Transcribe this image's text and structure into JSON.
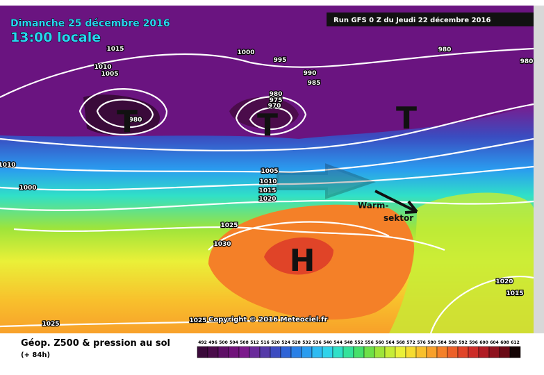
{
  "header": {
    "date": "Dimanche 25 décembre 2016",
    "time": "13:00 locale",
    "run": "Run GFS 0 Z du Jeudi 22 décembre 2016"
  },
  "map": {
    "pressure_centers": [
      "T",
      "T",
      "T",
      "H"
    ],
    "annotation": [
      "Warm-",
      "sektor"
    ],
    "copyright": "Copyright © 2016 Meteociel.fr",
    "isobar_labels": [
      1015,
      1010,
      1005,
      980,
      1000,
      995,
      990,
      985,
      980,
      975,
      970,
      980,
      980,
      1010,
      1000,
      1005,
      1010,
      1015,
      1020,
      1025,
      1030,
      1025,
      1025,
      1020,
      1015
    ]
  },
  "footer": {
    "title": "Géop. Z500 & pression au sol",
    "lead": "(+ 84h)"
  },
  "colorbar": {
    "labels": [
      492,
      496,
      500,
      504,
      508,
      512,
      516,
      520,
      524,
      528,
      532,
      536,
      540,
      544,
      548,
      552,
      556,
      560,
      564,
      568,
      572,
      576,
      580,
      584,
      588,
      592,
      596,
      600,
      604,
      608,
      612
    ],
    "colors": [
      "#3a0a3a",
      "#4b0c4b",
      "#5e0f66",
      "#70127a",
      "#7c1a8c",
      "#6a2a9a",
      "#553aa8",
      "#3c4cc0",
      "#2f64d6",
      "#2a80e6",
      "#2a9cef",
      "#2ebbf2",
      "#2fd3ea",
      "#30e0c8",
      "#34e29a",
      "#46e06a",
      "#6ee048",
      "#9ee43a",
      "#c6ec36",
      "#eaf038",
      "#f6dc30",
      "#f8c02c",
      "#f8a02a",
      "#f48028",
      "#ec6028",
      "#e04428",
      "#cc2c28",
      "#b01c24",
      "#8e121e",
      "#6a0a16",
      "#140404"
    ]
  }
}
